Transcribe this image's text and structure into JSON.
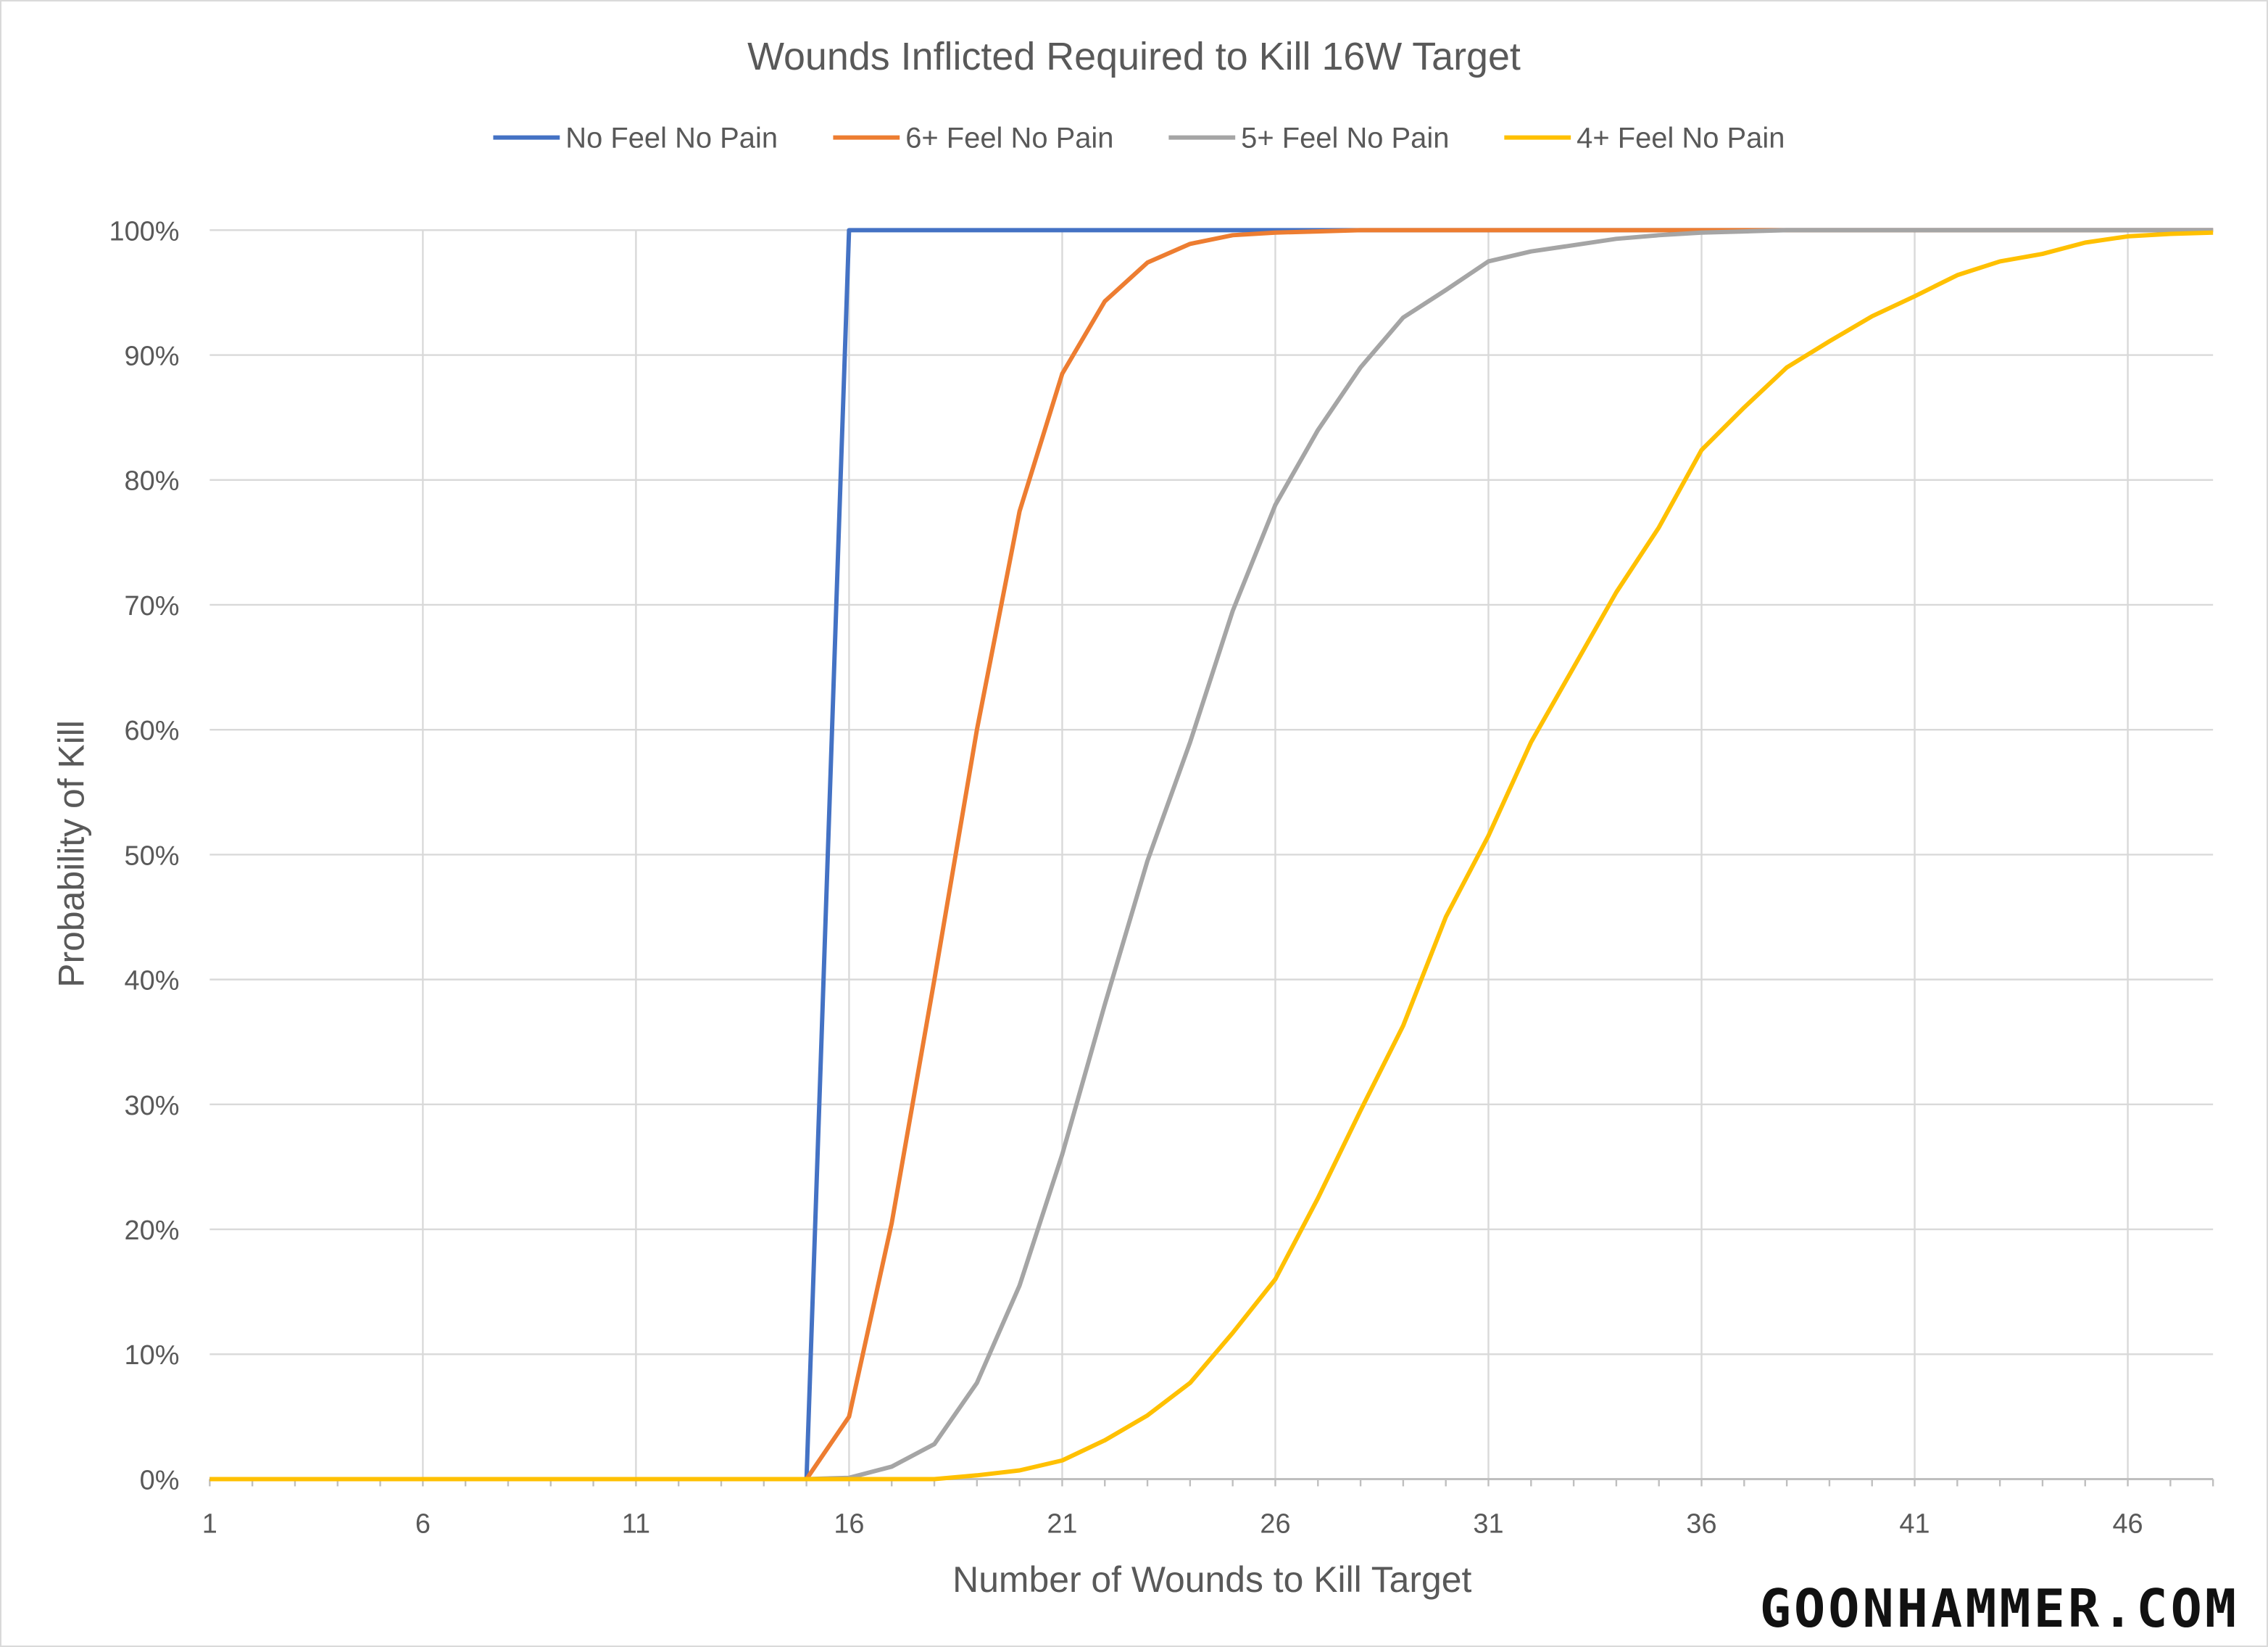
{
  "chart_data": {
    "type": "line",
    "title": "Wounds Inflicted Required to Kill 16W Target",
    "xlabel": "Number of Wounds to Kill Target",
    "ylabel": "Probability of Kill",
    "xlim": [
      1,
      48
    ],
    "ylim": [
      0,
      100
    ],
    "x_tick_labels": [
      "1",
      "6",
      "11",
      "16",
      "21",
      "26",
      "31",
      "36",
      "41",
      "46"
    ],
    "y_tick_labels": [
      "0%",
      "10%",
      "20%",
      "30%",
      "40%",
      "50%",
      "60%",
      "70%",
      "80%",
      "90%",
      "100%"
    ],
    "grid": true,
    "legend_position": "top",
    "x": [
      1,
      2,
      3,
      4,
      5,
      6,
      7,
      8,
      9,
      10,
      11,
      12,
      13,
      14,
      15,
      16,
      17,
      18,
      19,
      20,
      21,
      22,
      23,
      24,
      25,
      26,
      27,
      28,
      29,
      30,
      31,
      32,
      33,
      34,
      35,
      36,
      37,
      38,
      39,
      40,
      41,
      42,
      43,
      44,
      45,
      46,
      47,
      48
    ],
    "series": [
      {
        "name": "No Feel No Pain",
        "color": "#4472C4",
        "values": [
          0,
          0,
          0,
          0,
          0,
          0,
          0,
          0,
          0,
          0,
          0,
          0,
          0,
          0,
          0,
          100,
          100,
          100,
          100,
          100,
          100,
          100,
          100,
          100,
          100,
          100,
          100,
          100,
          100,
          100,
          100,
          100,
          100,
          100,
          100,
          100,
          100,
          100,
          100,
          100,
          100,
          100,
          100,
          100,
          100,
          100,
          100,
          100
        ]
      },
      {
        "name": "6+ Feel No Pain",
        "color": "#ED7D31",
        "values": [
          0,
          0,
          0,
          0,
          0,
          0,
          0,
          0,
          0,
          0,
          0,
          0,
          0,
          0,
          0,
          5,
          20.5,
          40,
          60,
          77.5,
          88.5,
          94.3,
          97.4,
          98.9,
          99.6,
          99.8,
          99.9,
          100,
          100,
          100,
          100,
          100,
          100,
          100,
          100,
          100,
          100,
          100,
          100,
          100,
          100,
          100,
          100,
          100,
          100,
          100,
          100,
          100
        ]
      },
      {
        "name": "5+ Feel No Pain",
        "color": "#A5A5A5",
        "values": [
          0,
          0,
          0,
          0,
          0,
          0,
          0,
          0,
          0,
          0,
          0,
          0,
          0,
          0,
          0,
          0.1,
          1,
          2.8,
          7.7,
          15.5,
          26,
          38,
          49.5,
          59,
          69.5,
          78,
          84,
          89,
          93,
          95.2,
          97.5,
          98.3,
          98.8,
          99.3,
          99.6,
          99.8,
          99.9,
          100,
          100,
          100,
          100,
          100,
          100,
          100,
          100,
          100,
          100,
          100
        ]
      },
      {
        "name": "4+ Feel No Pain",
        "color": "#FFC000",
        "values": [
          0,
          0,
          0,
          0,
          0,
          0,
          0,
          0,
          0,
          0,
          0,
          0,
          0,
          0,
          0,
          0,
          0,
          0,
          0.3,
          0.7,
          1.5,
          3.1,
          5.1,
          7.7,
          11.7,
          16,
          22.5,
          29.5,
          36.3,
          45,
          51.5,
          59,
          65,
          71,
          76.2,
          82.4,
          85.8,
          89,
          91.1,
          93.1,
          94.7,
          96.4,
          97.5,
          98.1,
          99,
          99.5,
          99.7,
          99.8
        ]
      }
    ]
  },
  "watermark": "GOONHAMMER.COM"
}
